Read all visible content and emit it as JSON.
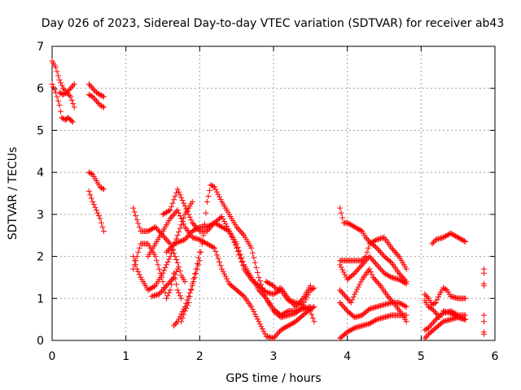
{
  "chart_data": {
    "type": "scatter",
    "title": "Day 026 of 2023, Sidereal Day-to-day VTEC variation (SDTVAR) for receiver ab43",
    "xlabel": "GPS time / hours",
    "ylabel": "SDTVAR / TECUs",
    "xlim": [
      0,
      6
    ],
    "ylim": [
      0,
      7
    ],
    "xticks": [
      "0",
      "1",
      "2",
      "3",
      "4",
      "5",
      "6"
    ],
    "yticks": [
      "0",
      "1",
      "2",
      "3",
      "4",
      "5",
      "6",
      "7"
    ],
    "grid": true,
    "marker": "+",
    "color": "#ff0000",
    "series": [
      {
        "name": "s1",
        "points": [
          [
            0.0,
            6.65
          ],
          [
            0.05,
            6.5
          ],
          [
            0.1,
            6.2
          ],
          [
            0.15,
            6.0
          ],
          [
            0.2,
            5.9
          ],
          [
            0.25,
            5.8
          ],
          [
            0.3,
            5.55
          ]
        ]
      },
      {
        "name": "s2",
        "points": [
          [
            0.0,
            6.1
          ],
          [
            0.05,
            5.9
          ],
          [
            0.1,
            5.6
          ],
          [
            0.13,
            5.3
          ],
          [
            0.18,
            5.25
          ],
          [
            0.22,
            5.3
          ],
          [
            0.28,
            5.2
          ]
        ]
      },
      {
        "name": "s3",
        "points": [
          [
            0.1,
            5.9
          ],
          [
            0.15,
            5.85
          ],
          [
            0.2,
            5.9
          ],
          [
            0.25,
            6.0
          ],
          [
            0.3,
            6.1
          ]
        ]
      },
      {
        "name": "s4",
        "points": [
          [
            0.5,
            6.1
          ],
          [
            0.55,
            6.0
          ],
          [
            0.6,
            5.9
          ],
          [
            0.65,
            5.85
          ],
          [
            0.7,
            5.8
          ]
        ]
      },
      {
        "name": "s5",
        "points": [
          [
            0.5,
            5.85
          ],
          [
            0.55,
            5.8
          ],
          [
            0.6,
            5.7
          ],
          [
            0.65,
            5.6
          ],
          [
            0.7,
            5.55
          ]
        ]
      },
      {
        "name": "s6",
        "points": [
          [
            0.5,
            4.0
          ],
          [
            0.55,
            3.95
          ],
          [
            0.6,
            3.8
          ],
          [
            0.65,
            3.65
          ],
          [
            0.7,
            3.6
          ]
        ]
      },
      {
        "name": "s7",
        "points": [
          [
            0.5,
            3.55
          ],
          [
            0.55,
            3.3
          ],
          [
            0.6,
            3.1
          ],
          [
            0.65,
            2.9
          ],
          [
            0.7,
            2.6
          ]
        ]
      },
      {
        "name": "s8",
        "points": [
          [
            1.1,
            3.15
          ],
          [
            1.2,
            2.6
          ],
          [
            1.3,
            2.6
          ],
          [
            1.4,
            2.7
          ],
          [
            1.5,
            2.5
          ],
          [
            1.6,
            2.3
          ],
          [
            1.7,
            1.85
          ],
          [
            1.75,
            1.55
          ],
          [
            1.8,
            1.4
          ]
        ]
      },
      {
        "name": "s9",
        "points": [
          [
            1.1,
            2.0
          ],
          [
            1.15,
            1.7
          ],
          [
            1.2,
            1.5
          ],
          [
            1.3,
            1.2
          ],
          [
            1.4,
            1.3
          ],
          [
            1.5,
            1.6
          ],
          [
            1.6,
            2.0
          ],
          [
            1.7,
            2.5
          ],
          [
            1.8,
            3.0
          ],
          [
            1.9,
            3.3
          ]
        ]
      },
      {
        "name": "s10",
        "points": [
          [
            1.1,
            1.7
          ],
          [
            1.2,
            2.3
          ],
          [
            1.3,
            2.3
          ],
          [
            1.4,
            2.0
          ],
          [
            1.5,
            1.4
          ],
          [
            1.55,
            1.0
          ],
          [
            1.6,
            1.2
          ],
          [
            1.65,
            1.6
          ],
          [
            1.7,
            1.2
          ],
          [
            1.75,
            1.0
          ]
        ]
      },
      {
        "name": "s11",
        "points": [
          [
            1.35,
            1.05
          ],
          [
            1.45,
            1.1
          ],
          [
            1.55,
            1.3
          ],
          [
            1.65,
            1.5
          ],
          [
            1.7,
            1.7
          ]
        ]
      },
      {
        "name": "s12",
        "points": [
          [
            1.3,
            2.0
          ],
          [
            1.4,
            2.3
          ],
          [
            1.5,
            2.6
          ],
          [
            1.6,
            2.9
          ],
          [
            1.7,
            3.1
          ],
          [
            1.8,
            2.7
          ],
          [
            1.9,
            2.45
          ],
          [
            2.0,
            2.4
          ],
          [
            2.1,
            2.3
          ],
          [
            2.2,
            2.2
          ],
          [
            2.3,
            1.7
          ],
          [
            2.4,
            1.35
          ],
          [
            2.5,
            1.2
          ],
          [
            2.6,
            1.05
          ],
          [
            2.7,
            0.8
          ],
          [
            2.8,
            0.45
          ],
          [
            2.9,
            0.1
          ],
          [
            3.0,
            0.05
          ],
          [
            3.1,
            0.25
          ],
          [
            3.2,
            0.35
          ],
          [
            3.3,
            0.45
          ],
          [
            3.4,
            0.6
          ],
          [
            3.5,
            0.75
          ],
          [
            3.55,
            0.8
          ]
        ]
      },
      {
        "name": "s13",
        "points": [
          [
            1.5,
            3.0
          ],
          [
            1.6,
            3.1
          ],
          [
            1.7,
            3.6
          ],
          [
            1.8,
            3.2
          ],
          [
            1.9,
            2.8
          ],
          [
            2.0,
            2.6
          ],
          [
            2.1,
            2.6
          ],
          [
            2.2,
            2.8
          ],
          [
            2.3,
            2.7
          ],
          [
            2.4,
            2.6
          ],
          [
            2.5,
            2.3
          ],
          [
            2.6,
            1.8
          ],
          [
            2.7,
            1.5
          ],
          [
            2.8,
            1.2
          ],
          [
            2.9,
            1.0
          ],
          [
            3.0,
            0.75
          ],
          [
            3.1,
            0.6
          ],
          [
            3.2,
            0.7
          ],
          [
            3.3,
            0.7
          ],
          [
            3.4,
            0.75
          ],
          [
            3.5,
            0.8
          ]
        ]
      },
      {
        "name": "s14",
        "points": [
          [
            1.65,
            0.35
          ],
          [
            1.7,
            0.45
          ],
          [
            1.8,
            0.8
          ],
          [
            1.9,
            1.3
          ],
          [
            2.0,
            1.9
          ],
          [
            2.05,
            2.5
          ],
          [
            2.1,
            3.3
          ],
          [
            2.15,
            3.7
          ],
          [
            2.2,
            3.65
          ],
          [
            2.3,
            3.3
          ],
          [
            2.4,
            3.0
          ],
          [
            2.5,
            2.7
          ],
          [
            2.6,
            2.5
          ],
          [
            2.7,
            2.2
          ],
          [
            2.8,
            1.5
          ],
          [
            2.9,
            1.0
          ],
          [
            3.0,
            0.7
          ],
          [
            3.1,
            0.55
          ],
          [
            3.2,
            0.6
          ],
          [
            3.3,
            0.65
          ],
          [
            3.4,
            0.8
          ],
          [
            3.5,
            0.7
          ],
          [
            3.55,
            0.45
          ]
        ]
      },
      {
        "name": "s15",
        "points": [
          [
            1.75,
            0.45
          ],
          [
            1.8,
            0.7
          ],
          [
            1.85,
            0.9
          ],
          [
            1.9,
            1.35
          ],
          [
            1.95,
            1.7
          ],
          [
            2.0,
            2.1
          ]
        ]
      },
      {
        "name": "s16",
        "points": [
          [
            1.55,
            2.1
          ],
          [
            1.65,
            2.3
          ],
          [
            1.8,
            2.4
          ],
          [
            1.9,
            2.6
          ],
          [
            2.0,
            2.7
          ],
          [
            2.1,
            2.7
          ],
          [
            2.2,
            2.8
          ],
          [
            2.3,
            2.95
          ],
          [
            2.4,
            2.6
          ],
          [
            2.5,
            2.2
          ],
          [
            2.6,
            1.7
          ],
          [
            2.7,
            1.45
          ],
          [
            2.8,
            1.3
          ],
          [
            2.9,
            1.15
          ],
          [
            3.0,
            1.1
          ],
          [
            3.1,
            1.2
          ],
          [
            3.2,
            0.95
          ],
          [
            3.3,
            0.9
          ],
          [
            3.4,
            0.85
          ],
          [
            3.5,
            1.2
          ],
          [
            3.55,
            1.25
          ]
        ]
      },
      {
        "name": "s17",
        "points": [
          [
            2.9,
            1.4
          ],
          [
            3.0,
            1.3
          ],
          [
            3.05,
            1.2
          ],
          [
            3.1,
            1.25
          ],
          [
            3.2,
            1.0
          ],
          [
            3.3,
            0.8
          ],
          [
            3.4,
            1.0
          ],
          [
            3.5,
            1.3
          ]
        ]
      },
      {
        "name": "s18",
        "points": [
          [
            3.9,
            3.15
          ],
          [
            3.95,
            2.8
          ],
          [
            4.0,
            2.8
          ],
          [
            4.1,
            2.7
          ],
          [
            4.2,
            2.6
          ],
          [
            4.25,
            2.45
          ],
          [
            4.3,
            2.35
          ],
          [
            4.4,
            2.2
          ],
          [
            4.5,
            2.0
          ],
          [
            4.6,
            1.85
          ],
          [
            4.7,
            1.6
          ],
          [
            4.8,
            1.4
          ]
        ]
      },
      {
        "name": "s19",
        "points": [
          [
            3.9,
            1.9
          ],
          [
            4.0,
            1.9
          ],
          [
            4.1,
            1.9
          ],
          [
            4.2,
            1.9
          ],
          [
            4.25,
            2.0
          ],
          [
            4.3,
            2.3
          ],
          [
            4.4,
            2.4
          ],
          [
            4.5,
            2.45
          ],
          [
            4.6,
            2.2
          ],
          [
            4.7,
            2.0
          ],
          [
            4.8,
            1.7
          ]
        ]
      },
      {
        "name": "s20",
        "points": [
          [
            3.9,
            1.8
          ],
          [
            4.0,
            1.45
          ],
          [
            4.1,
            1.6
          ],
          [
            4.2,
            1.8
          ],
          [
            4.3,
            2.0
          ],
          [
            4.4,
            1.8
          ],
          [
            4.5,
            1.6
          ],
          [
            4.6,
            1.5
          ],
          [
            4.7,
            1.45
          ],
          [
            4.8,
            1.35
          ]
        ]
      },
      {
        "name": "s21",
        "points": [
          [
            3.9,
            1.2
          ],
          [
            4.0,
            1.0
          ],
          [
            4.05,
            0.9
          ],
          [
            4.1,
            1.1
          ],
          [
            4.2,
            1.45
          ],
          [
            4.3,
            1.7
          ],
          [
            4.35,
            1.5
          ],
          [
            4.45,
            1.3
          ],
          [
            4.55,
            1.05
          ],
          [
            4.65,
            0.85
          ],
          [
            4.75,
            0.6
          ],
          [
            4.8,
            0.45
          ]
        ]
      },
      {
        "name": "s22",
        "points": [
          [
            3.9,
            0.9
          ],
          [
            4.0,
            0.7
          ],
          [
            4.1,
            0.55
          ],
          [
            4.2,
            0.6
          ],
          [
            4.3,
            0.75
          ],
          [
            4.4,
            0.8
          ],
          [
            4.5,
            0.85
          ],
          [
            4.6,
            0.9
          ],
          [
            4.7,
            0.9
          ],
          [
            4.8,
            0.8
          ]
        ]
      },
      {
        "name": "s23",
        "points": [
          [
            3.9,
            0.05
          ],
          [
            4.0,
            0.2
          ],
          [
            4.1,
            0.3
          ],
          [
            4.2,
            0.35
          ],
          [
            4.3,
            0.4
          ],
          [
            4.4,
            0.5
          ],
          [
            4.5,
            0.55
          ],
          [
            4.6,
            0.6
          ],
          [
            4.7,
            0.6
          ],
          [
            4.8,
            0.6
          ]
        ]
      },
      {
        "name": "s24",
        "points": [
          [
            5.15,
            2.3
          ],
          [
            5.2,
            2.4
          ],
          [
            5.3,
            2.45
          ],
          [
            5.4,
            2.55
          ],
          [
            5.5,
            2.45
          ],
          [
            5.6,
            2.35
          ]
        ]
      },
      {
        "name": "s25",
        "points": [
          [
            5.05,
            1.1
          ],
          [
            5.1,
            1.0
          ],
          [
            5.15,
            0.85
          ],
          [
            5.2,
            0.9
          ],
          [
            5.25,
            1.1
          ],
          [
            5.3,
            1.25
          ],
          [
            5.35,
            1.2
          ],
          [
            5.4,
            1.05
          ],
          [
            5.5,
            1.0
          ],
          [
            5.6,
            1.0
          ]
        ]
      },
      {
        "name": "s26",
        "points": [
          [
            5.05,
            0.95
          ],
          [
            5.1,
            0.8
          ],
          [
            5.15,
            0.75
          ],
          [
            5.2,
            0.65
          ],
          [
            5.25,
            0.55
          ],
          [
            5.3,
            0.7
          ],
          [
            5.4,
            0.65
          ],
          [
            5.5,
            0.55
          ],
          [
            5.6,
            0.5
          ]
        ]
      },
      {
        "name": "s27",
        "points": [
          [
            5.05,
            0.25
          ],
          [
            5.1,
            0.3
          ],
          [
            5.15,
            0.4
          ],
          [
            5.2,
            0.5
          ],
          [
            5.3,
            0.65
          ],
          [
            5.4,
            0.7
          ],
          [
            5.5,
            0.6
          ],
          [
            5.6,
            0.6
          ]
        ]
      },
      {
        "name": "s28",
        "points": [
          [
            5.05,
            0.05
          ],
          [
            5.1,
            0.15
          ],
          [
            5.2,
            0.3
          ],
          [
            5.3,
            0.45
          ],
          [
            5.4,
            0.5
          ],
          [
            5.5,
            0.55
          ],
          [
            5.6,
            0.5
          ]
        ]
      },
      {
        "name": "s29",
        "points": [
          [
            5.85,
            1.7
          ],
          [
            5.85,
            1.6
          ],
          [
            5.85,
            1.35
          ],
          [
            5.85,
            1.3
          ],
          [
            5.85,
            0.6
          ],
          [
            5.85,
            0.45
          ],
          [
            5.85,
            0.2
          ],
          [
            5.85,
            0.15
          ]
        ]
      }
    ]
  }
}
